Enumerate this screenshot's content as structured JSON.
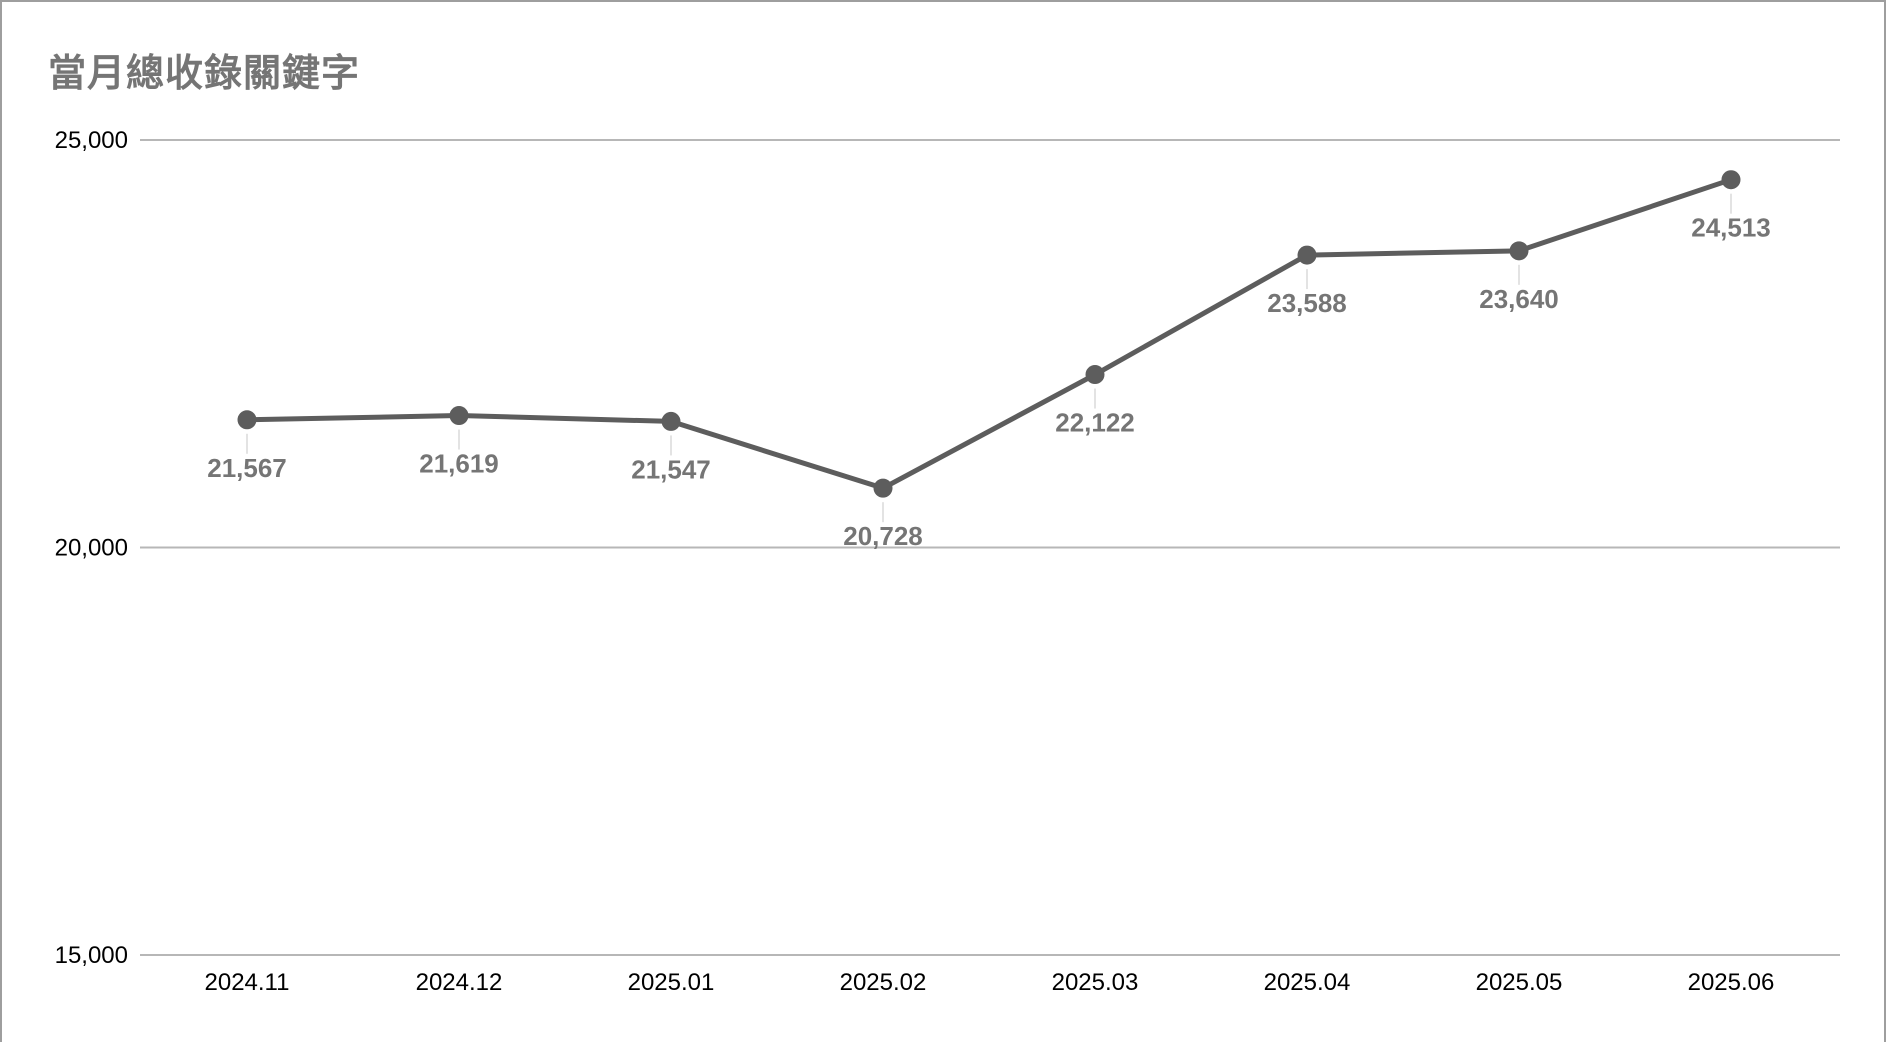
{
  "title": "當月總收錄關鍵字",
  "chart_data": {
    "type": "line",
    "title": "當月總收錄關鍵字",
    "categories": [
      "2024.11",
      "2024.12",
      "2025.01",
      "2025.02",
      "2025.03",
      "2025.04",
      "2025.05",
      "2025.06"
    ],
    "values": [
      21567,
      21619,
      21547,
      20728,
      22122,
      23588,
      23640,
      24513
    ],
    "value_labels": [
      "21,567",
      "21,619",
      "21,547",
      "20,728",
      "22,122",
      "23,588",
      "23,640",
      "24,513"
    ],
    "series_name": "當月總收錄關鍵字",
    "xlabel": "",
    "ylabel": "",
    "ylim": [
      15000,
      25000
    ],
    "y_ticks": [
      {
        "value": 15000,
        "label": "15,000"
      },
      {
        "value": 20000,
        "label": "20,000"
      },
      {
        "value": 25000,
        "label": "25,000"
      }
    ],
    "grid": "horizontal-only",
    "legend_position": "none",
    "point_labels_position": "below-points",
    "colors": {
      "line": "#5d5d5d",
      "point": "#5d5d5d",
      "value_label": "#757575",
      "axis_label": "#000000",
      "gridline": "#b7b7b7",
      "title": "#757575",
      "card_border": "#9e9e9e",
      "leader_line": "#e3e3e3",
      "background": "#ffffff"
    }
  }
}
